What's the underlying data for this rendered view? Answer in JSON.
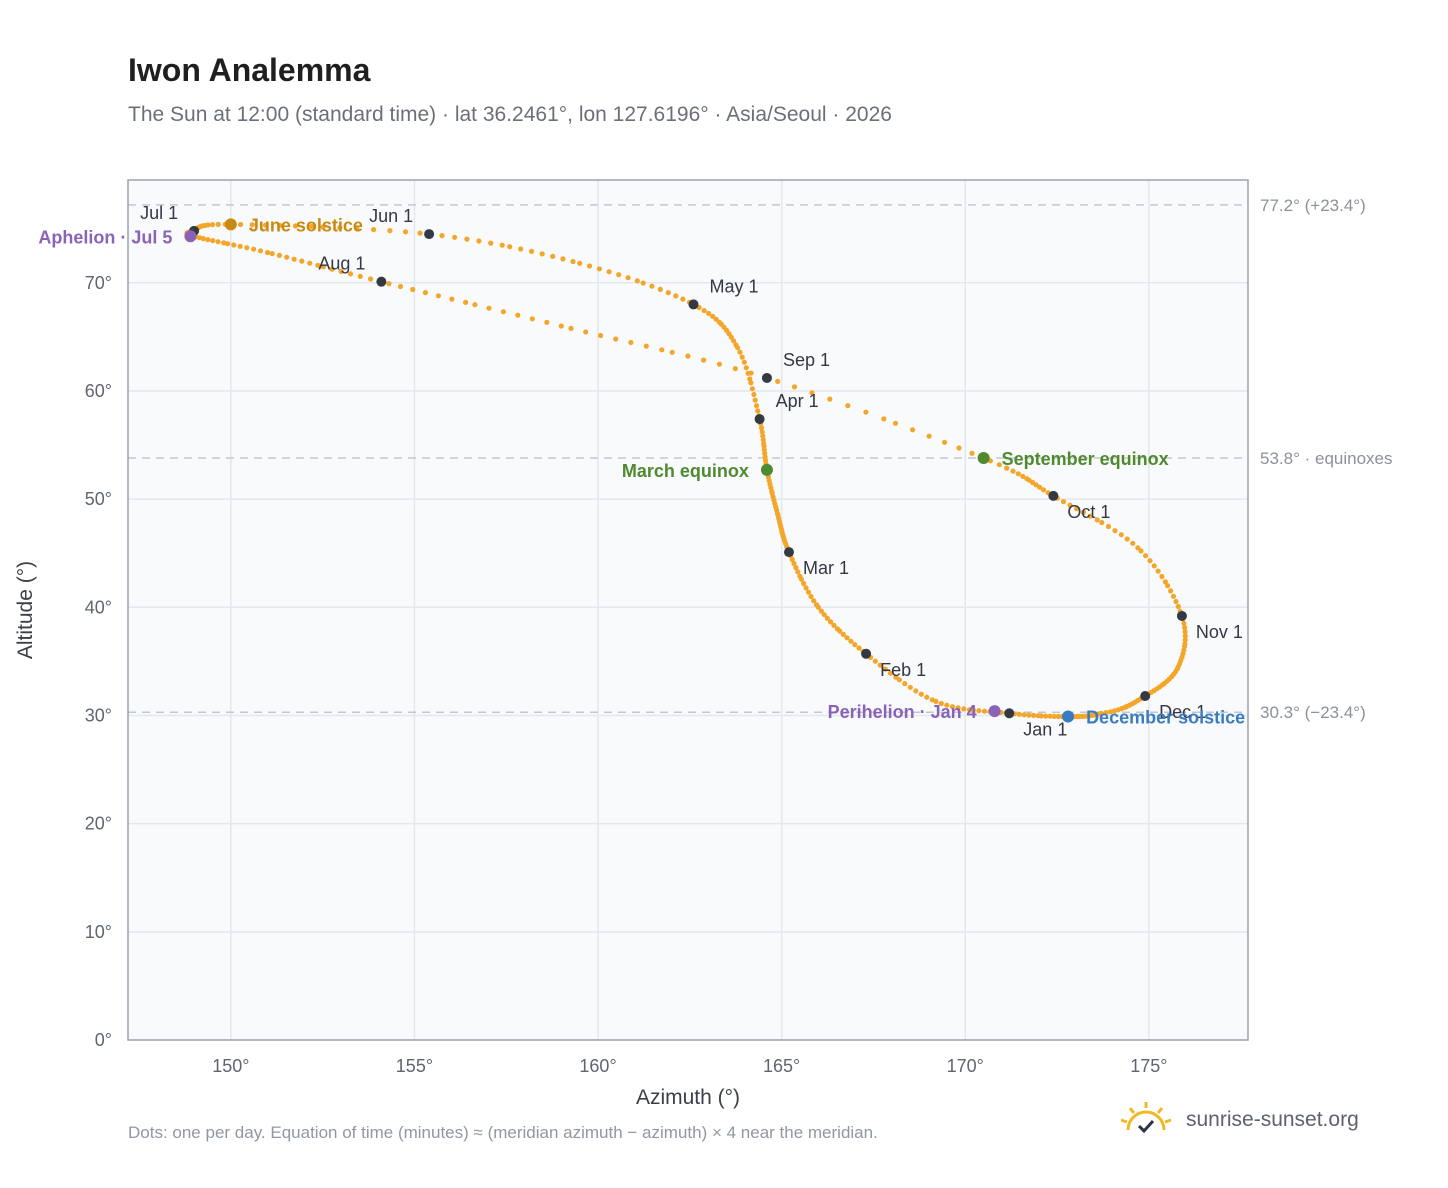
{
  "header": {
    "title": "Iwon Analemma",
    "subtitle": "The Sun at 12:00 (standard time) · lat 36.2461°, lon 127.6196° · Asia/Seoul · 2026"
  },
  "footer": {
    "note": "Dots: one per day. Equation of time (minutes) ≈ (meridian azimuth − azimuth) × 4 near the meridian.",
    "brand": "sunrise-sunset.org"
  },
  "chart_data": {
    "type": "scatter",
    "xlabel": "Azimuth (°)",
    "ylabel": "Altitude (°)",
    "xlim": [
      147.2,
      177.7
    ],
    "ylim": [
      0,
      79.5
    ],
    "xticks": [
      150,
      155,
      160,
      165,
      170,
      175
    ],
    "yticks": [
      0,
      10,
      20,
      30,
      40,
      50,
      60,
      70
    ],
    "tick_suffix": "°",
    "grid": true,
    "colors": {
      "path": "#f4a62a",
      "month": "#343a44",
      "solstice_june": "#c98a12",
      "solstice_december": "#3a7cc0",
      "equinox": "#4f8a2e",
      "apsis": "#8a63b8",
      "grid": "#e3e7ee",
      "reference": "#c2c8d2",
      "plot_bg": "#f8fafc",
      "frame": "#9aa3b2"
    },
    "reference_lines": [
      {
        "y": 77.2,
        "label": "77.2° (+23.4°)"
      },
      {
        "y": 53.8,
        "label": "53.8° · equinoxes"
      },
      {
        "y": 30.3,
        "label": "30.3° (−23.4°)"
      }
    ],
    "path_anchors": [
      {
        "x": 172.8,
        "y": 29.9
      },
      {
        "x": 171.2,
        "y": 30.2
      },
      {
        "x": 169.2,
        "y": 31.3
      },
      {
        "x": 167.3,
        "y": 35.7
      },
      {
        "x": 166.0,
        "y": 40.0
      },
      {
        "x": 165.2,
        "y": 45.1
      },
      {
        "x": 164.9,
        "y": 48.5
      },
      {
        "x": 164.6,
        "y": 52.7
      },
      {
        "x": 164.4,
        "y": 57.4
      },
      {
        "x": 163.8,
        "y": 64.0
      },
      {
        "x": 162.6,
        "y": 68.0
      },
      {
        "x": 159.5,
        "y": 71.8
      },
      {
        "x": 155.4,
        "y": 74.5
      },
      {
        "x": 150.0,
        "y": 75.4
      },
      {
        "x": 149.0,
        "y": 74.8
      },
      {
        "x": 149.0,
        "y": 74.3
      },
      {
        "x": 151.0,
        "y": 72.8
      },
      {
        "x": 154.1,
        "y": 70.1
      },
      {
        "x": 159.0,
        "y": 66.0
      },
      {
        "x": 164.6,
        "y": 61.2
      },
      {
        "x": 170.5,
        "y": 53.8
      },
      {
        "x": 172.4,
        "y": 50.3
      },
      {
        "x": 174.7,
        "y": 45.5
      },
      {
        "x": 175.9,
        "y": 39.2
      },
      {
        "x": 175.8,
        "y": 34.5
      },
      {
        "x": 174.9,
        "y": 31.8
      },
      {
        "x": 173.7,
        "y": 30.2
      },
      {
        "x": 172.8,
        "y": 29.9
      }
    ],
    "month_markers": [
      {
        "label": "Jan 1",
        "x": 171.2,
        "y": 30.2,
        "anchor": "below-right"
      },
      {
        "label": "Feb 1",
        "x": 167.3,
        "y": 35.7,
        "anchor": "below-right"
      },
      {
        "label": "Mar 1",
        "x": 165.2,
        "y": 45.1,
        "anchor": "below-right"
      },
      {
        "label": "Apr 1",
        "x": 164.4,
        "y": 57.4,
        "anchor": "above-right"
      },
      {
        "label": "May 1",
        "x": 162.6,
        "y": 68.0,
        "anchor": "above-right"
      },
      {
        "label": "Jun 1",
        "x": 155.4,
        "y": 74.5,
        "anchor": "above-left"
      },
      {
        "label": "Jul 1",
        "x": 149.0,
        "y": 74.8,
        "anchor": "above-left"
      },
      {
        "label": "Aug 1",
        "x": 154.1,
        "y": 70.1,
        "anchor": "above-left"
      },
      {
        "label": "Sep 1",
        "x": 164.6,
        "y": 61.2,
        "anchor": "above-right"
      },
      {
        "label": "Oct 1",
        "x": 172.4,
        "y": 50.3,
        "anchor": "below-right"
      },
      {
        "label": "Nov 1",
        "x": 175.9,
        "y": 39.2,
        "anchor": "below-right"
      },
      {
        "label": "Dec 1",
        "x": 174.9,
        "y": 31.8,
        "anchor": "below-right"
      }
    ],
    "events": [
      {
        "label": "June solstice",
        "x": 150.0,
        "y": 75.4,
        "color": "#c98a12",
        "side": "right"
      },
      {
        "label": "Aphelion · Jul 5",
        "x": 148.9,
        "y": 74.3,
        "color": "#8a63b8",
        "side": "left"
      },
      {
        "label": "March equinox",
        "x": 164.6,
        "y": 52.7,
        "color": "#4f8a2e",
        "side": "left"
      },
      {
        "label": "September equinox",
        "x": 170.5,
        "y": 53.8,
        "color": "#4f8a2e",
        "side": "right"
      },
      {
        "label": "Perihelion · Jan 4",
        "x": 170.8,
        "y": 30.4,
        "color": "#8a63b8",
        "side": "left"
      },
      {
        "label": "December solstice",
        "x": 172.8,
        "y": 29.9,
        "color": "#3a7cc0",
        "side": "right"
      }
    ]
  }
}
